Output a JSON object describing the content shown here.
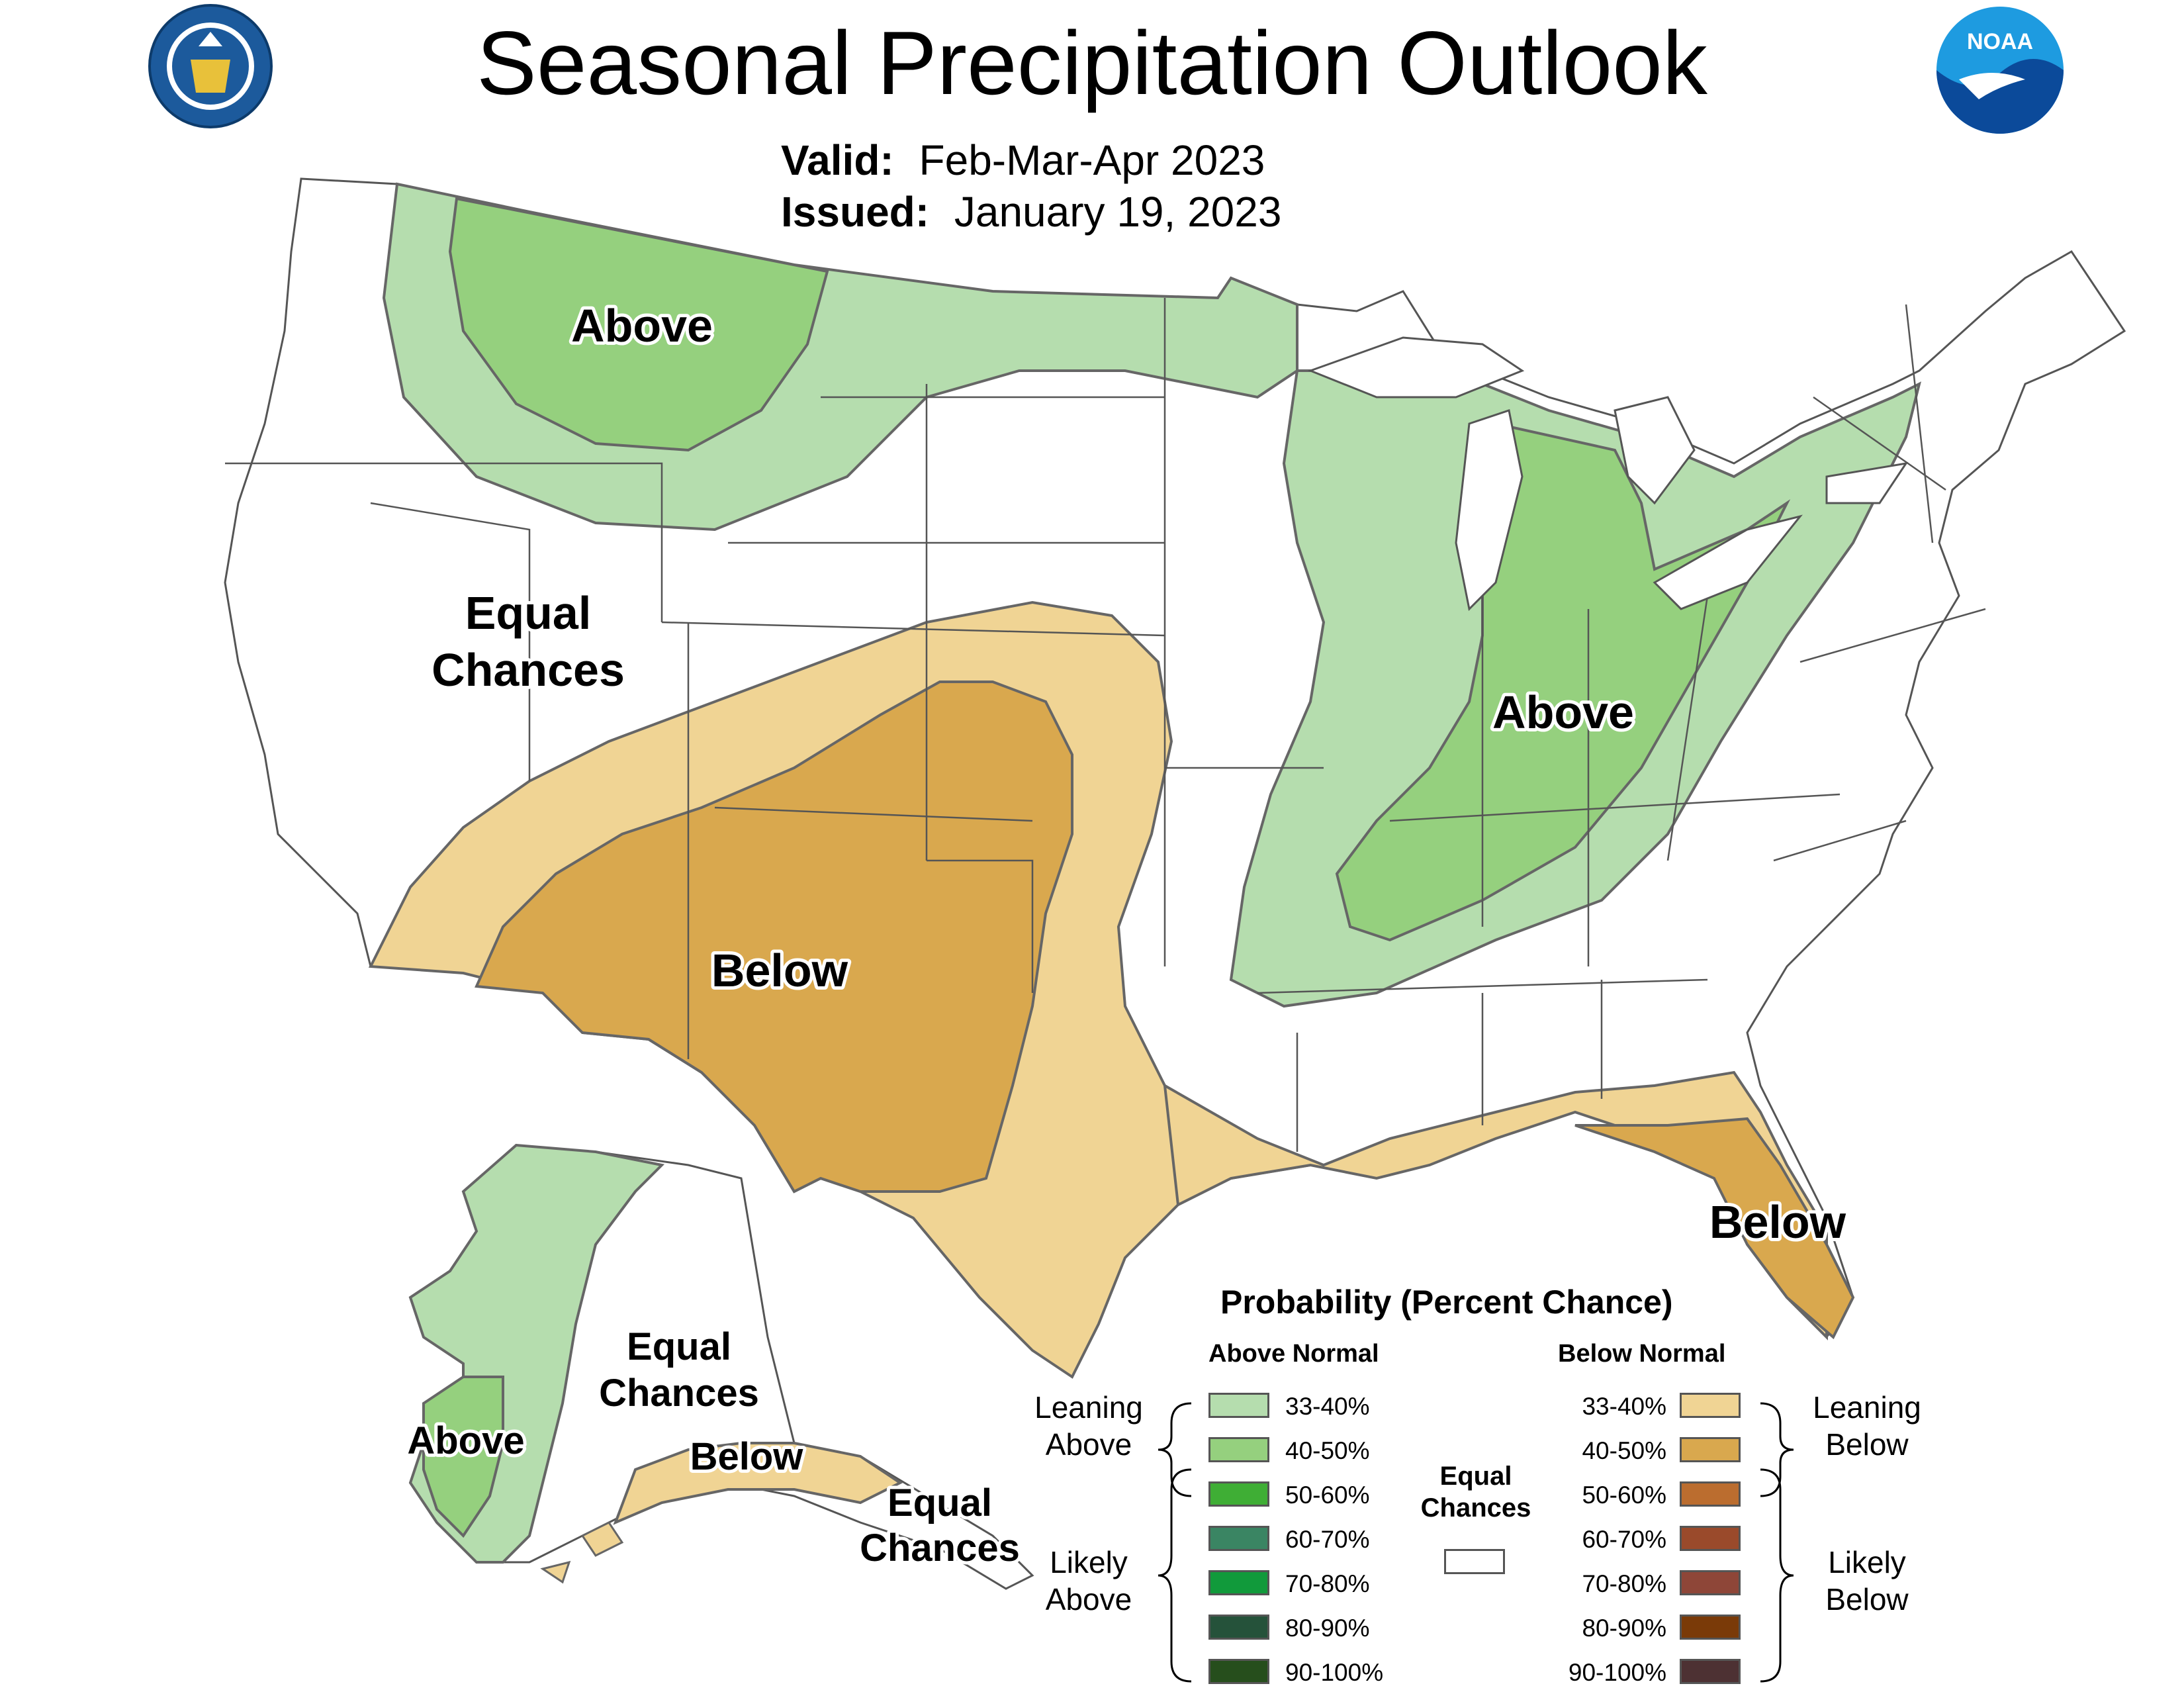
{
  "title": "Seasonal Precipitation Outlook",
  "valid_label": "Valid:",
  "valid_value": "Feb-Mar-Apr 2023",
  "issued_label": "Issued:",
  "issued_value": "January 19, 2023",
  "logos": {
    "commerce": {
      "name": "department-of-commerce-seal",
      "text": "DEPARTMENT OF COMMERCE · UNITED STATES OF AMERICA"
    },
    "noaa": {
      "name": "noaa-logo",
      "text": "NOAA"
    }
  },
  "colors": {
    "above_33_40": "#b5ddae",
    "above_40_50": "#95d07e",
    "below_33_40": "#f0d494",
    "below_40_50": "#d9a84e",
    "boundary": "#777777",
    "state_line": "#555555"
  },
  "map_labels": [
    {
      "id": "nw-above",
      "text": "Above"
    },
    {
      "id": "west-ec-1",
      "text": "Equal"
    },
    {
      "id": "west-ec-2",
      "text": "Chances"
    },
    {
      "id": "ohio-above",
      "text": "Above"
    },
    {
      "id": "sw-below",
      "text": "Below"
    },
    {
      "id": "fl-below",
      "text": "Below"
    },
    {
      "id": "ak-above",
      "text": "Above"
    },
    {
      "id": "ak-ec-1",
      "text": "Equal"
    },
    {
      "id": "ak-ec-2",
      "text": "Chances"
    },
    {
      "id": "ak-below",
      "text": "Below"
    },
    {
      "id": "ak-se-ec-1",
      "text": "Equal"
    },
    {
      "id": "ak-se-ec-2",
      "text": "Chances"
    }
  ],
  "legend": {
    "title": "Probability (Percent Chance)",
    "above_header": "Above Normal",
    "below_header": "Below Normal",
    "equal_chances": [
      "Equal",
      "Chances"
    ],
    "leaning_above": [
      "Leaning",
      "Above"
    ],
    "likely_above": [
      "Likely",
      "Above"
    ],
    "leaning_below": [
      "Leaning",
      "Below"
    ],
    "likely_below": [
      "Likely",
      "Below"
    ],
    "above_rows": [
      {
        "label": "33-40%",
        "color": "#b5ddae"
      },
      {
        "label": "40-50%",
        "color": "#95d07e"
      },
      {
        "label": "50-60%",
        "color": "#3fae35"
      },
      {
        "label": "60-70%",
        "color": "#3a8563"
      },
      {
        "label": "70-80%",
        "color": "#119a3b"
      },
      {
        "label": "80-90%",
        "color": "#25523a"
      },
      {
        "label": "90-100%",
        "color": "#264e1c"
      }
    ],
    "below_rows": [
      {
        "label": "33-40%",
        "color": "#f0d494"
      },
      {
        "label": "40-50%",
        "color": "#d9a84e"
      },
      {
        "label": "50-60%",
        "color": "#bb6d2f"
      },
      {
        "label": "60-70%",
        "color": "#9a4a2b"
      },
      {
        "label": "70-80%",
        "color": "#8e4638"
      },
      {
        "label": "80-90%",
        "color": "#7a3a08"
      },
      {
        "label": "90-100%",
        "color": "#4d3133"
      }
    ]
  }
}
